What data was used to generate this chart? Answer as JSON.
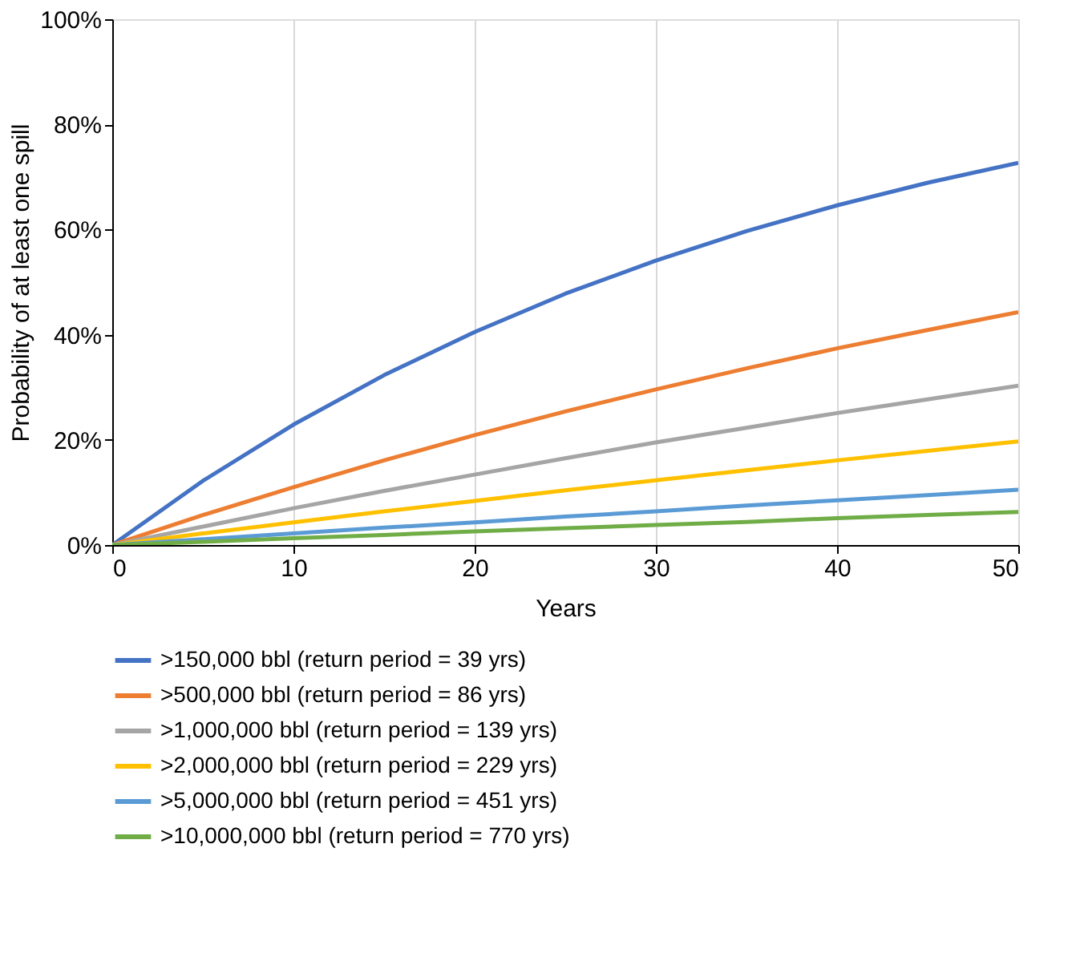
{
  "chart_data": {
    "type": "line",
    "xlabel": "Years",
    "ylabel": "Probability of at least one spill",
    "x": [
      0,
      5,
      10,
      15,
      20,
      25,
      30,
      35,
      40,
      45,
      50
    ],
    "series": [
      {
        "name": ">150,000 bbl (return period = 39 yrs)",
        "color": "#4472c4",
        "values": [
          0,
          12.2,
          22.9,
          32.3,
          40.5,
          47.8,
          54.1,
          59.7,
          64.6,
          68.9,
          72.7
        ]
      },
      {
        "name": ">500,000 bbl (return period = 86 yrs)",
        "color": "#ed7d31",
        "values": [
          0,
          5.7,
          11.0,
          16.1,
          20.9,
          25.4,
          29.6,
          33.6,
          37.4,
          40.9,
          44.3
        ]
      },
      {
        "name": ">1,000,000 bbl (return period = 139 yrs)",
        "color": "#a5a5a5",
        "values": [
          0,
          3.5,
          7.0,
          10.3,
          13.4,
          16.5,
          19.5,
          22.3,
          25.1,
          27.7,
          30.3
        ]
      },
      {
        "name": ">2,000,000 bbl (return period = 229 yrs)",
        "color": "#ffc000",
        "values": [
          0,
          2.2,
          4.3,
          6.4,
          8.4,
          10.4,
          12.3,
          14.2,
          16.1,
          17.9,
          19.7
        ]
      },
      {
        "name": ">5,000,000 bbl (return period = 451 yrs)",
        "color": "#5b9bd5",
        "values": [
          0,
          1.1,
          2.2,
          3.3,
          4.3,
          5.4,
          6.4,
          7.5,
          8.5,
          9.5,
          10.5
        ]
      },
      {
        "name": ">10,000,000 bbl (return period = 770 yrs)",
        "color": "#70ad47",
        "values": [
          0,
          0.6,
          1.3,
          1.9,
          2.6,
          3.2,
          3.8,
          4.4,
          5.1,
          5.7,
          6.3
        ]
      }
    ],
    "xlim": [
      0,
      50
    ],
    "xticks": [
      0,
      10,
      20,
      30,
      40,
      50
    ],
    "ylim": [
      0,
      100
    ],
    "yticks": [
      {
        "value": 0,
        "label": "0%"
      },
      {
        "value": 20,
        "label": "20%"
      },
      {
        "value": 40,
        "label": "40%"
      },
      {
        "value": 60,
        "label": "60%"
      },
      {
        "value": 80,
        "label": "80%"
      },
      {
        "value": 100,
        "label": "100%"
      }
    ],
    "grid": "x",
    "legend": "bottom",
    "marker": "none",
    "line_style": "solid"
  }
}
